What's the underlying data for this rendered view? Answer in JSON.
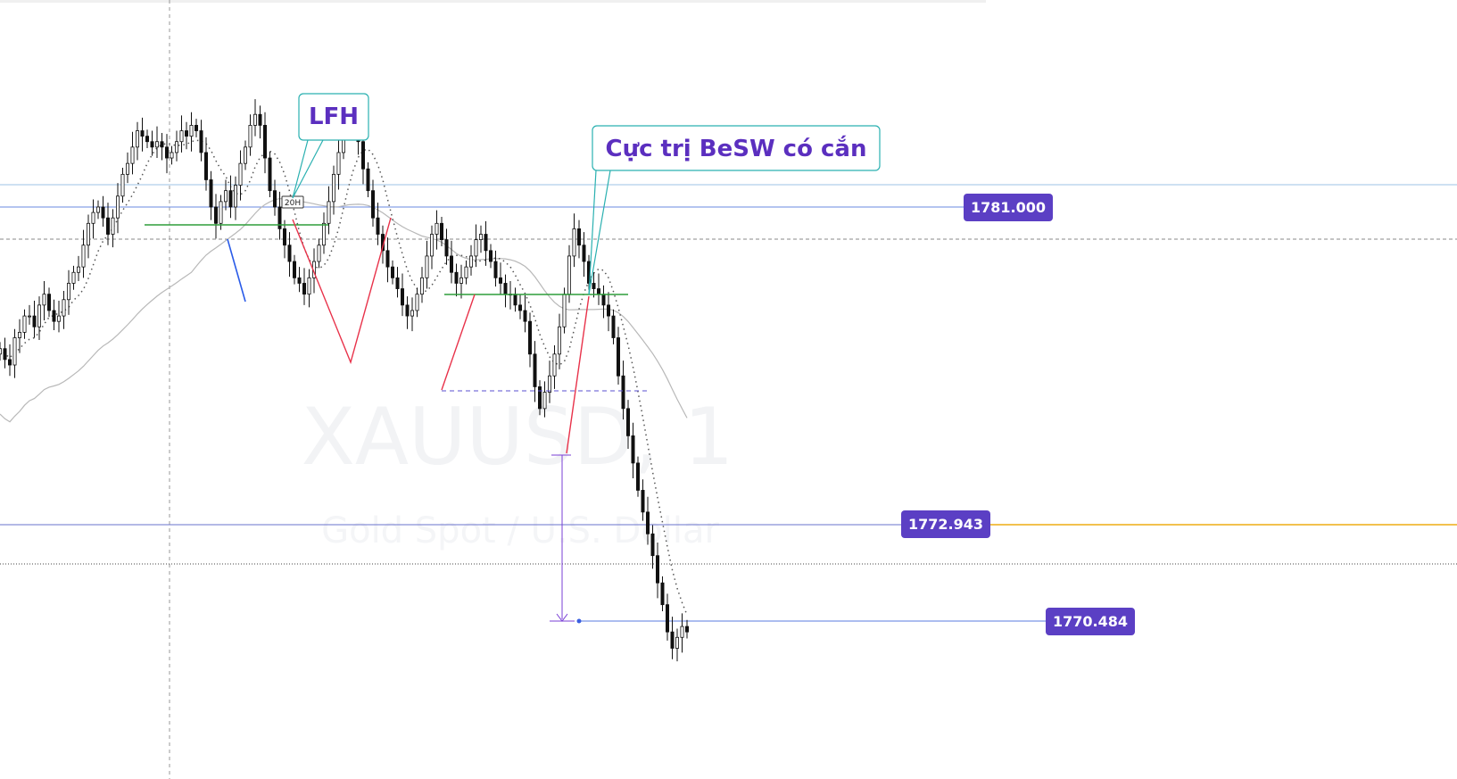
{
  "chart_data": {
    "type": "candlestick",
    "watermark": {
      "symbol": "XAUUSD, 1",
      "description": "Gold Spot / U.S. Dollar"
    },
    "y_range": [
      1768.7,
      1783.0
    ],
    "price_labels": [
      {
        "value": 1781.0,
        "text": "1781.000",
        "color": "#5b3fc4"
      },
      {
        "value": 1772.943,
        "text": "1772.943",
        "color": "#5b3fc4"
      },
      {
        "value": 1770.484,
        "text": "1770.484",
        "color": "#5b3fc4"
      }
    ],
    "annotations": [
      {
        "text": "LFH",
        "price": 1781.0
      },
      {
        "text": "Cực trị BeSW có cắn",
        "price": 1779.0
      }
    ],
    "session_marker": "20H",
    "closes": [
      1776.6,
      1776.4,
      1776.3,
      1776.8,
      1776.9,
      1777.2,
      1777.2,
      1777.0,
      1777.4,
      1777.6,
      1777.3,
      1777.1,
      1777.2,
      1777.5,
      1777.8,
      1778.0,
      1778.1,
      1778.5,
      1778.9,
      1779.1,
      1779.2,
      1779.0,
      1778.7,
      1779.0,
      1779.4,
      1779.8,
      1780.0,
      1780.3,
      1780.6,
      1780.5,
      1780.4,
      1780.3,
      1780.4,
      1780.3,
      1780.1,
      1780.2,
      1780.4,
      1780.6,
      1780.5,
      1780.7,
      1780.6,
      1780.2,
      1779.7,
      1779.2,
      1778.9,
      1779.3,
      1779.5,
      1779.2,
      1779.6,
      1780.0,
      1780.3,
      1780.7,
      1780.9,
      1780.7,
      1780.1,
      1779.5,
      1779.2,
      1778.8,
      1778.5,
      1778.2,
      1777.9,
      1777.8,
      1777.6,
      1777.9,
      1778.2,
      1778.5,
      1778.9,
      1779.3,
      1779.8,
      1780.2,
      1780.6,
      1781.0,
      1780.7,
      1780.4,
      1779.9,
      1779.5,
      1779.0,
      1778.7,
      1778.4,
      1778.1,
      1777.9,
      1777.7,
      1777.4,
      1777.2,
      1777.3,
      1777.6,
      1777.9,
      1778.3,
      1778.7,
      1778.9,
      1778.6,
      1778.3,
      1778.0,
      1777.8,
      1777.9,
      1778.1,
      1778.3,
      1778.6,
      1778.7,
      1778.4,
      1778.2,
      1777.9,
      1777.8,
      1777.6,
      1777.6,
      1777.4,
      1777.3,
      1777.1,
      1776.5,
      1775.9,
      1775.5,
      1775.8,
      1776.1,
      1776.5,
      1777.0,
      1777.6,
      1778.3,
      1778.8,
      1778.5,
      1778.2,
      1777.8,
      1777.7,
      1777.6,
      1777.4,
      1777.2,
      1776.8,
      1776.1,
      1775.5,
      1775.0,
      1774.5,
      1774.0,
      1773.6,
      1773.2,
      1772.8,
      1772.3,
      1771.9,
      1771.4,
      1771.1,
      1771.3,
      1771.5,
      1771.4
    ]
  }
}
